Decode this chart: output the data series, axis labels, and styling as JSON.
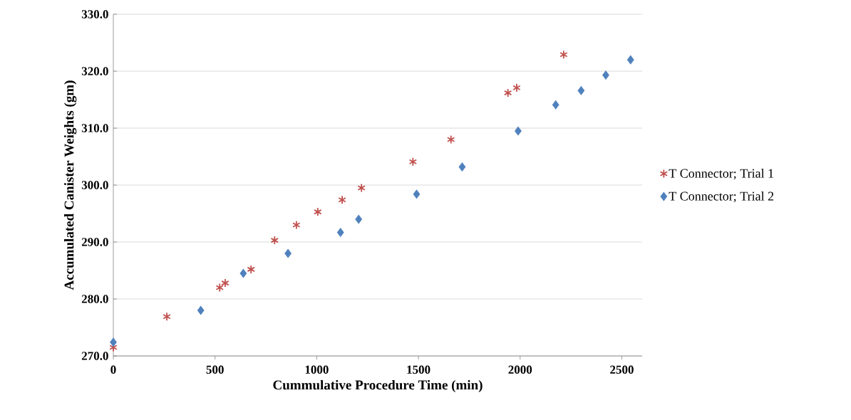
{
  "chart_data": {
    "type": "scatter",
    "xlabel": "Cummulative Procedure Time  (min)",
    "ylabel": "Accumulated Canister Weights  (gm)",
    "xlim": [
      0,
      2600
    ],
    "xticks": [
      0,
      500,
      1000,
      1500,
      2000,
      2500
    ],
    "ylim": [
      270,
      330
    ],
    "yticks": [
      {
        "value": 270,
        "label": "270.0"
      },
      {
        "value": 280,
        "label": "280.0"
      },
      {
        "value": 290,
        "label": "290.0"
      },
      {
        "value": 300,
        "label": "300.0"
      },
      {
        "value": 310,
        "label": "310.0"
      },
      {
        "value": 320,
        "label": "320.0"
      },
      {
        "value": 330,
        "label": "330.0"
      }
    ],
    "grid": "y",
    "legend": "right",
    "series": [
      {
        "name": "T Connector; Trial 1",
        "color": "#c0504d",
        "marker": "cross",
        "x": [
          0,
          263,
          523,
          550,
          677,
          793,
          900,
          1005,
          1125,
          1220,
          1473,
          1660,
          1940,
          1983,
          2214
        ],
        "values": [
          271.5,
          276.9,
          282.0,
          282.8,
          285.2,
          290.3,
          293.0,
          295.3,
          297.4,
          299.5,
          304.1,
          308.0,
          316.2,
          317.1,
          322.9
        ]
      },
      {
        "name": "T Connector; Trial 2",
        "color": "#4f81bd",
        "marker": "diamond",
        "x": [
          0,
          430,
          639,
          859,
          1117,
          1206,
          1491,
          1715,
          1990,
          2175,
          2300,
          2421,
          2543
        ],
        "values": [
          272.4,
          278.0,
          284.5,
          288.0,
          291.7,
          294.0,
          298.4,
          303.2,
          309.5,
          314.1,
          316.6,
          319.3,
          322.0
        ]
      }
    ]
  }
}
